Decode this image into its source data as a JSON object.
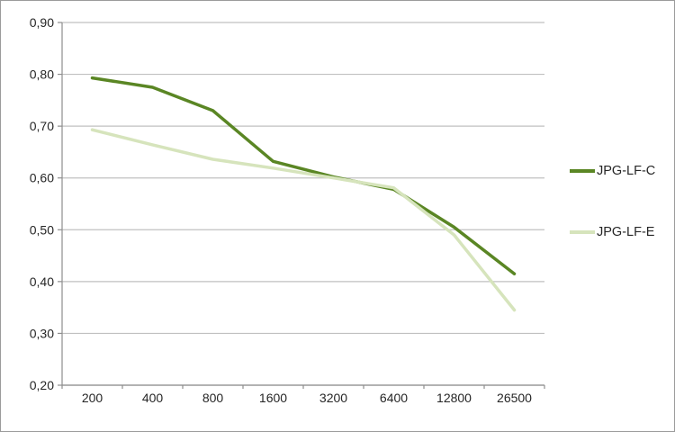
{
  "chart_data": {
    "type": "line",
    "title": "",
    "xlabel": "",
    "ylabel": "",
    "categories": [
      "200",
      "400",
      "800",
      "1600",
      "3200",
      "6400",
      "12800",
      "26500"
    ],
    "series": [
      {
        "name": "JPG-LF-C",
        "color": "#5a8624",
        "width": 3.5,
        "values": [
          0.793,
          0.775,
          0.73,
          0.632,
          0.602,
          0.578,
          0.505,
          0.415
        ]
      },
      {
        "name": "JPG-LF-E",
        "color": "#d6e4bc",
        "width": 3.5,
        "values": [
          0.693,
          0.664,
          0.636,
          0.619,
          0.6,
          0.581,
          0.49,
          0.345
        ]
      }
    ],
    "ylim": [
      0.2,
      0.9
    ],
    "ytick_step": 0.1,
    "ytick_labels_top_to_bottom": [
      "0,90",
      "0,80",
      "0,70",
      "0,60",
      "0,50",
      "0,40",
      "0,30",
      "0,20"
    ],
    "decimal_separator": ",",
    "grid": true,
    "legend_position": "right"
  },
  "colors": {
    "background": "#ffffff",
    "outer_border": "#9b9b9b",
    "gridline": "#c0c0c0",
    "axis": "#8e8e8e",
    "text": "#262626"
  }
}
